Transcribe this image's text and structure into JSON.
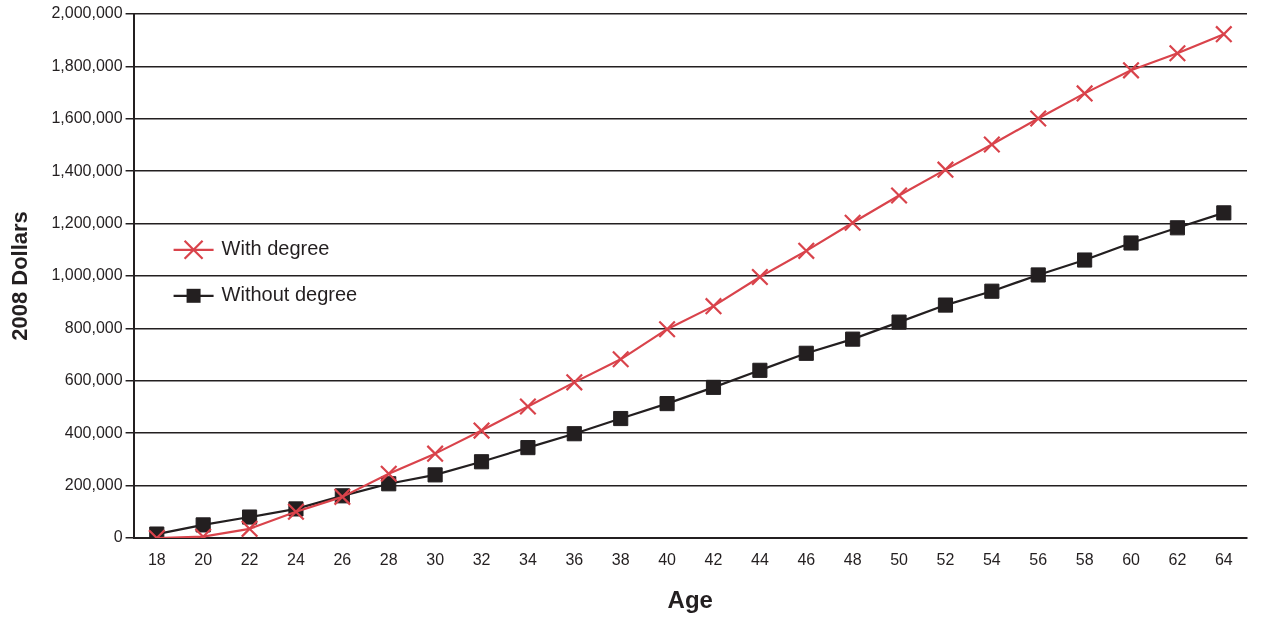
{
  "chart_data": {
    "type": "line",
    "xlabel": "Age",
    "ylabel": "2008 Dollars",
    "categories": [
      "18",
      "20",
      "22",
      "24",
      "26",
      "28",
      "30",
      "32",
      "34",
      "36",
      "38",
      "40",
      "42",
      "44",
      "46",
      "48",
      "50",
      "52",
      "54",
      "56",
      "58",
      "60",
      "62",
      "64"
    ],
    "series": [
      {
        "name": "With degree",
        "color": "#d9434b",
        "marker": "cross",
        "values": [
          0,
          5000,
          35000,
          100000,
          157000,
          245000,
          322000,
          410000,
          502000,
          594000,
          682000,
          797000,
          885000,
          996000,
          1096000,
          1203000,
          1307000,
          1406000,
          1502000,
          1601000,
          1697000,
          1785000,
          1850000,
          1923000
        ]
      },
      {
        "name": "Without degree",
        "color": "#231f20",
        "marker": "square",
        "values": [
          15000,
          50000,
          80000,
          111000,
          161000,
          207000,
          241000,
          291000,
          345000,
          398000,
          456000,
          513000,
          575000,
          640000,
          705000,
          759000,
          824000,
          889000,
          942000,
          1004000,
          1061000,
          1126000,
          1184000,
          1241000
        ]
      }
    ],
    "ylim": [
      0,
      2000000
    ],
    "yticks": [
      {
        "value": 0,
        "label": "0"
      },
      {
        "value": 200000,
        "label": "200,000"
      },
      {
        "value": 400000,
        "label": "400,000"
      },
      {
        "value": 600000,
        "label": "600,000"
      },
      {
        "value": 800000,
        "label": "800,000"
      },
      {
        "value": 1000000,
        "label": "1,000,000"
      },
      {
        "value": 1200000,
        "label": "1,200,000"
      },
      {
        "value": 1400000,
        "label": "1,400,000"
      },
      {
        "value": 1600000,
        "label": "1,600,000"
      },
      {
        "value": 1800000,
        "label": "1,800,000"
      },
      {
        "value": 2000000,
        "label": "2,000,000"
      }
    ],
    "grid": "y",
    "legend": "left",
    "line_style": "solid"
  }
}
